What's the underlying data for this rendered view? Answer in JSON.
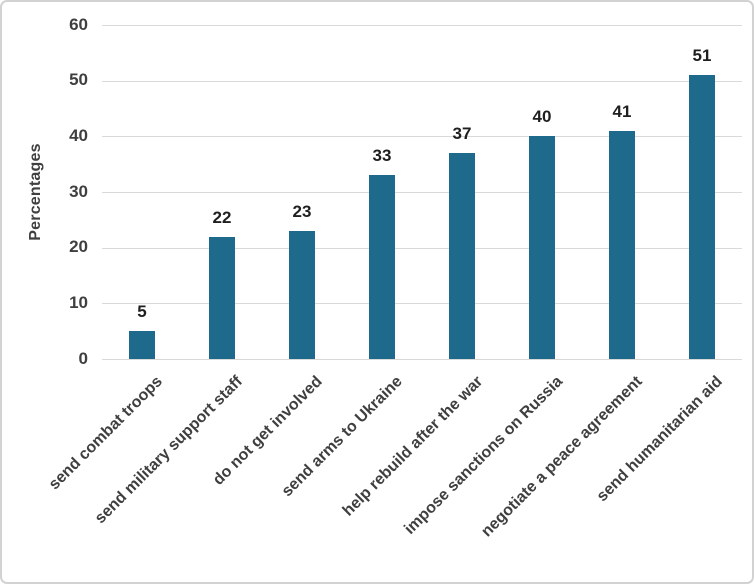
{
  "chart_data": {
    "type": "bar",
    "title": "",
    "xlabel": "",
    "ylabel": "Percentages",
    "categories": [
      "send combat troops",
      "send military support staff",
      "do not get involved",
      "send arms to Ukraine",
      "help rebuild after the war",
      "impose sanctions on Russia",
      "negotiate a peace agreement",
      "send humanitarian aid"
    ],
    "values": [
      5,
      22,
      23,
      33,
      37,
      40,
      41,
      51
    ],
    "ylim": [
      0,
      60
    ],
    "yticks": [
      0,
      10,
      20,
      30,
      40,
      50,
      60
    ],
    "grid": "horizontal",
    "legend": "none",
    "data_labels": true,
    "bar_orientation": "vertical",
    "x_label_rotation_deg": 45
  },
  "colors": {
    "bar": "#1e6a8c",
    "grid": "#d9d9d9",
    "axis_text": "#3f3f3f",
    "data_label": "#1f1f1f",
    "frame_border": "#d2d2d2",
    "background": "#ffffff"
  }
}
